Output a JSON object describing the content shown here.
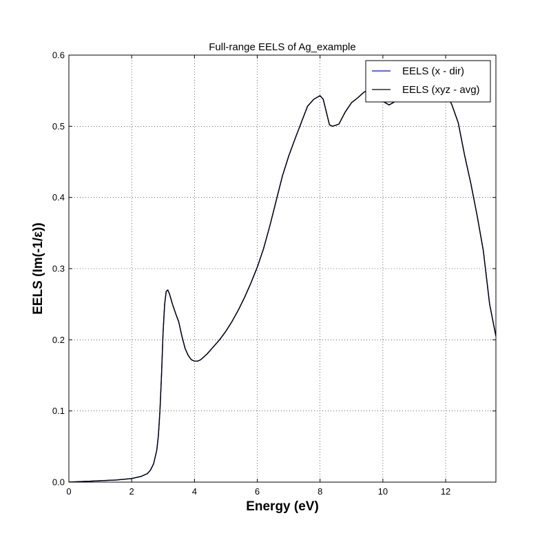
{
  "chart_data": {
    "type": "line",
    "title": "Full-range EELS of Ag_example",
    "xlabel": "Energy (eV)",
    "ylabel": "EELS (Im(-1/ε))",
    "xlim": [
      0,
      13.6
    ],
    "ylim": [
      0,
      0.6
    ],
    "x_ticks": [
      0,
      2,
      4,
      6,
      8,
      10,
      12
    ],
    "x_tick_labels": [
      "0",
      "2",
      "4",
      "6",
      "8",
      "10",
      "12"
    ],
    "y_ticks": [
      0,
      0.1,
      0.2,
      0.3,
      0.4,
      0.5,
      0.6
    ],
    "y_tick_labels": [
      "0.0",
      "0.1",
      "0.2",
      "0.3",
      "0.4",
      "0.5",
      "0.6"
    ],
    "grid": true,
    "legend_position": "top-right",
    "series": [
      {
        "name": "EELS (x - dir)",
        "color": "#0000ff",
        "x": [
          0,
          0.5,
          1.0,
          1.5,
          2.0,
          2.3,
          2.5,
          2.6,
          2.7,
          2.8,
          2.85,
          2.9,
          2.95,
          3.0,
          3.05,
          3.1,
          3.15,
          3.2,
          3.3,
          3.4,
          3.5,
          3.6,
          3.7,
          3.8,
          3.9,
          4.0,
          4.1,
          4.2,
          4.4,
          4.6,
          4.8,
          5.0,
          5.2,
          5.4,
          5.6,
          5.8,
          6.0,
          6.2,
          6.4,
          6.6,
          6.8,
          7.0,
          7.2,
          7.4,
          7.6,
          7.8,
          8.0,
          8.1,
          8.2,
          8.3,
          8.4,
          8.6,
          8.8,
          9.0,
          9.2,
          9.4,
          9.6,
          9.8,
          10.0,
          10.2,
          10.4,
          10.6,
          10.8,
          11.0,
          11.2,
          11.4,
          11.6,
          11.8,
          12.0,
          12.2,
          12.4,
          12.6,
          12.8,
          13.0,
          13.2,
          13.4,
          13.6
        ],
        "y": [
          0.0,
          0.001,
          0.002,
          0.003,
          0.005,
          0.008,
          0.012,
          0.017,
          0.026,
          0.045,
          0.065,
          0.1,
          0.15,
          0.21,
          0.25,
          0.268,
          0.27,
          0.265,
          0.25,
          0.237,
          0.225,
          0.205,
          0.188,
          0.178,
          0.172,
          0.17,
          0.17,
          0.172,
          0.18,
          0.19,
          0.2,
          0.212,
          0.226,
          0.242,
          0.26,
          0.28,
          0.302,
          0.328,
          0.36,
          0.395,
          0.43,
          0.458,
          0.482,
          0.505,
          0.528,
          0.538,
          0.543,
          0.538,
          0.52,
          0.502,
          0.5,
          0.503,
          0.52,
          0.533,
          0.54,
          0.548,
          0.552,
          0.548,
          0.535,
          0.53,
          0.535,
          0.542,
          0.548,
          0.552,
          0.555,
          0.558,
          0.56,
          0.556,
          0.548,
          0.53,
          0.505,
          0.46,
          0.42,
          0.375,
          0.325,
          0.25,
          0.205
        ]
      },
      {
        "name": "EELS (xyz - avg)",
        "color": "#000000",
        "x": [
          0,
          0.5,
          1.0,
          1.5,
          2.0,
          2.3,
          2.5,
          2.6,
          2.7,
          2.8,
          2.85,
          2.9,
          2.95,
          3.0,
          3.05,
          3.1,
          3.15,
          3.2,
          3.3,
          3.4,
          3.5,
          3.6,
          3.7,
          3.8,
          3.9,
          4.0,
          4.1,
          4.2,
          4.4,
          4.6,
          4.8,
          5.0,
          5.2,
          5.4,
          5.6,
          5.8,
          6.0,
          6.2,
          6.4,
          6.6,
          6.8,
          7.0,
          7.2,
          7.4,
          7.6,
          7.8,
          8.0,
          8.1,
          8.2,
          8.3,
          8.4,
          8.6,
          8.8,
          9.0,
          9.2,
          9.4,
          9.6,
          9.8,
          10.0,
          10.2,
          10.4,
          10.6,
          10.8,
          11.0,
          11.2,
          11.4,
          11.6,
          11.8,
          12.0,
          12.2,
          12.4,
          12.6,
          12.8,
          13.0,
          13.2,
          13.4,
          13.6
        ],
        "y": [
          0.0,
          0.001,
          0.002,
          0.003,
          0.005,
          0.008,
          0.012,
          0.017,
          0.026,
          0.045,
          0.065,
          0.1,
          0.15,
          0.21,
          0.25,
          0.268,
          0.27,
          0.265,
          0.25,
          0.237,
          0.225,
          0.205,
          0.188,
          0.178,
          0.172,
          0.17,
          0.17,
          0.172,
          0.18,
          0.19,
          0.2,
          0.212,
          0.226,
          0.242,
          0.26,
          0.28,
          0.302,
          0.328,
          0.36,
          0.395,
          0.43,
          0.458,
          0.482,
          0.505,
          0.528,
          0.538,
          0.543,
          0.538,
          0.52,
          0.502,
          0.5,
          0.503,
          0.52,
          0.533,
          0.54,
          0.548,
          0.552,
          0.548,
          0.535,
          0.53,
          0.535,
          0.542,
          0.548,
          0.552,
          0.555,
          0.558,
          0.56,
          0.556,
          0.548,
          0.53,
          0.505,
          0.46,
          0.42,
          0.375,
          0.325,
          0.25,
          0.205
        ]
      }
    ]
  }
}
